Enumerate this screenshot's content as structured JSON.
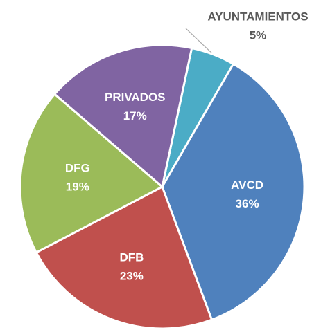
{
  "chart_data": {
    "type": "pie",
    "categories": [
      "AYUNTAMIENTOS",
      "AVCD",
      "DFB",
      "DFG",
      "PRIVADOS"
    ],
    "values": [
      5,
      36,
      23,
      19,
      17
    ],
    "value_labels": [
      "5%",
      "36%",
      "23%",
      "19%",
      "17%"
    ],
    "colors": [
      "#4bacc6",
      "#4f81bd",
      "#c0504d",
      "#9bbb59",
      "#8064a2"
    ]
  }
}
